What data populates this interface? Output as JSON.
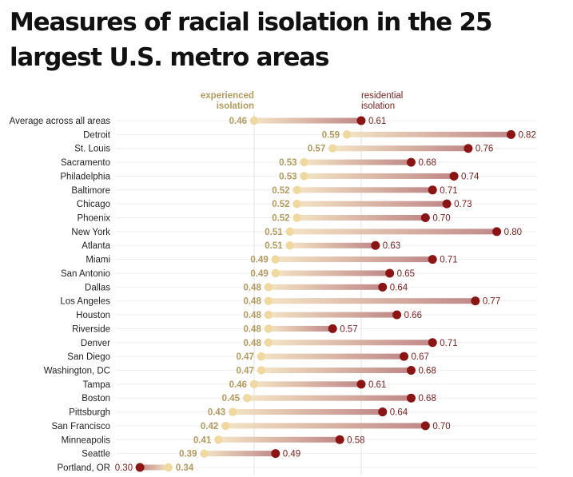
{
  "title": "Measures of racial isolation in the 25 largest U.S. metro areas",
  "chart_data": {
    "type": "dumbbell",
    "title": "Measures of racial isolation in the 25 largest U.S. metro areas",
    "xlabel": "",
    "ylabel": "",
    "series": [
      {
        "name": "experienced isolation",
        "color": "#f0d9a0",
        "label_color": "#b39a5e"
      },
      {
        "name": "residential isolation",
        "color": "#8b1414",
        "label_color": "#7a1e1e"
      }
    ],
    "reference_lines": [
      {
        "series": "experienced isolation",
        "value": 0.46,
        "label": "experienced isolation"
      },
      {
        "series": "residential isolation",
        "value": 0.61,
        "label": "residential isolation"
      }
    ],
    "categories": [
      "Average across all areas",
      "Detroit",
      "St. Louis",
      "Sacramento",
      "Philadelphia",
      "Baltimore",
      "Chicago",
      "Phoenix",
      "New York",
      "Atlanta",
      "Miami",
      "San Antonio",
      "Dallas",
      "Los Angeles",
      "Houston",
      "Riverside",
      "Denver",
      "San Diego",
      "Washington, DC",
      "Tampa",
      "Boston",
      "Pittsburgh",
      "San Francisco",
      "Minneapolis",
      "Seattle",
      "Portland, OR"
    ],
    "experienced": [
      0.46,
      0.59,
      0.57,
      0.53,
      0.53,
      0.52,
      0.52,
      0.52,
      0.51,
      0.51,
      0.49,
      0.49,
      0.48,
      0.48,
      0.48,
      0.48,
      0.48,
      0.47,
      0.47,
      0.46,
      0.45,
      0.43,
      0.42,
      0.41,
      0.39,
      0.34
    ],
    "residential": [
      0.61,
      0.82,
      0.76,
      0.68,
      0.74,
      0.71,
      0.73,
      0.7,
      0.8,
      0.63,
      0.71,
      0.65,
      0.64,
      0.77,
      0.66,
      0.57,
      0.71,
      0.67,
      0.68,
      0.61,
      0.68,
      0.64,
      0.7,
      0.58,
      0.49,
      0.3
    ],
    "experienced_labels": [
      "0.46",
      "0.59",
      "0.57",
      "0.53",
      "0.53",
      "0.52",
      "0.52",
      "0.52",
      "0.51",
      "0.51",
      "0.49",
      "0.49",
      "0.48",
      "0.48",
      "0.48",
      "0.48",
      "0.48",
      "0.47",
      "0.47",
      "0.46",
      "0.45",
      "0.43",
      "0.42",
      "0.41",
      "0.39",
      "0.34"
    ],
    "residential_labels": [
      "0.61",
      "0.82",
      "0.76",
      "0.68",
      "0.74",
      "0.71",
      "0.73",
      "0.70",
      "0.80",
      "0.63",
      "0.71",
      "0.65",
      "0.64",
      "0.77",
      "0.66",
      "0.57",
      "0.71",
      "0.67",
      "0.68",
      "0.61",
      "0.68",
      "0.64",
      "0.70",
      "0.58",
      "0.49",
      "0.30"
    ],
    "grid": true
  }
}
